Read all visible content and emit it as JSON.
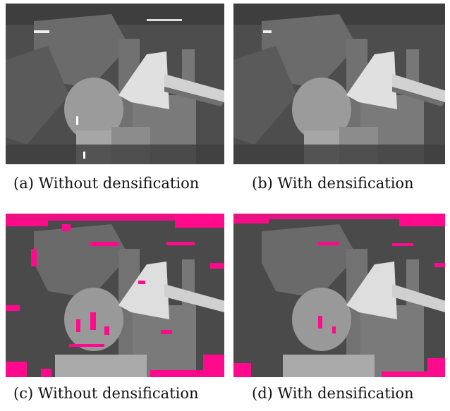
{
  "figure": {
    "panels": [
      {
        "id": "a",
        "caption": "(a) Without densification",
        "image": "disparity-map-gray-sparse"
      },
      {
        "id": "b",
        "caption": "(b) With densification",
        "image": "disparity-map-gray-dense"
      },
      {
        "id": "c",
        "caption": "(c) Without densification",
        "image": "disparity-map-error-overlay-magenta"
      },
      {
        "id": "d",
        "caption": "(d) With densification",
        "image": "disparity-map-error-overlay-magenta-reduced"
      }
    ],
    "colors": {
      "background_dark": "#4a4a4a",
      "mid_gray": "#6a6a6a",
      "head_gray": "#999999",
      "lamp_white": "#dedede",
      "error_magenta": "#ff0a8c"
    }
  }
}
